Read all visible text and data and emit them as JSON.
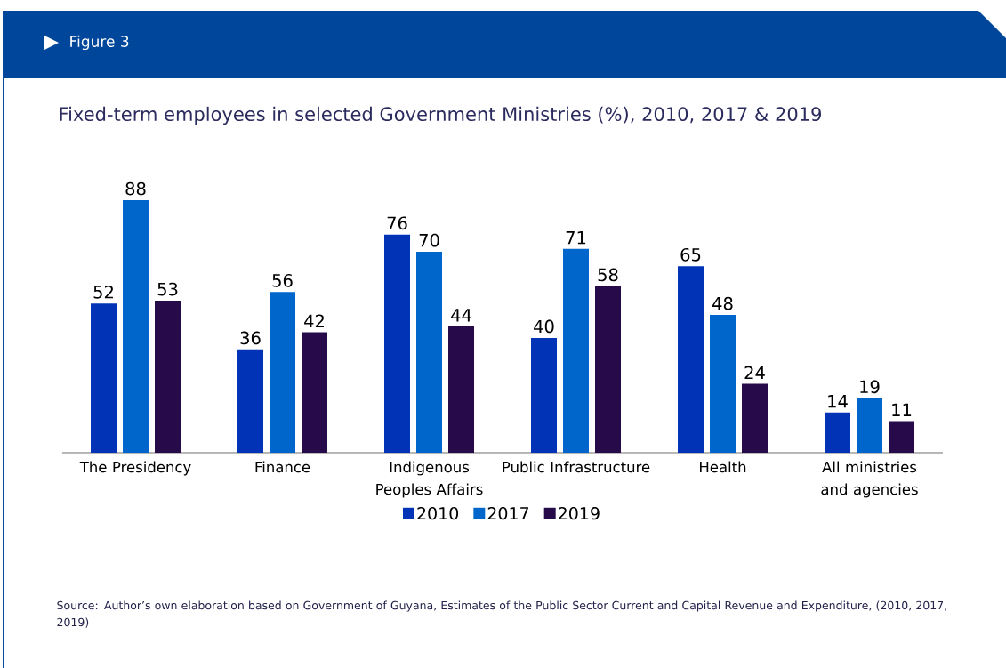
{
  "chart_data": {
    "type": "bar",
    "title": "Fixed-term employees in selected Government Ministries (%), 2010, 2017 & 2019",
    "categories": [
      "The Presidency",
      "Finance",
      "Indigenous Peoples Affairs",
      "Public Infrastructure",
      "Health",
      "All ministries and agencies"
    ],
    "series": [
      {
        "name": "2010",
        "color": "#0033b5",
        "values": [
          52,
          36,
          76,
          40,
          65,
          14
        ]
      },
      {
        "name": "2017",
        "color": "#0066cc",
        "values": [
          88,
          56,
          70,
          71,
          48,
          19
        ]
      },
      {
        "name": "2019",
        "color": "#260a4a",
        "values": [
          53,
          42,
          44,
          58,
          24,
          11
        ]
      }
    ],
    "data_labels": true,
    "legend": "bottom",
    "annotations": [
      "Figure 3",
      "Source: Author’s own elaboration based on Government of Guyana, Estimates of the Public Sector Current and Capital Revenue and Expenditure, (2010, 2017, 2019)"
    ]
  }
}
